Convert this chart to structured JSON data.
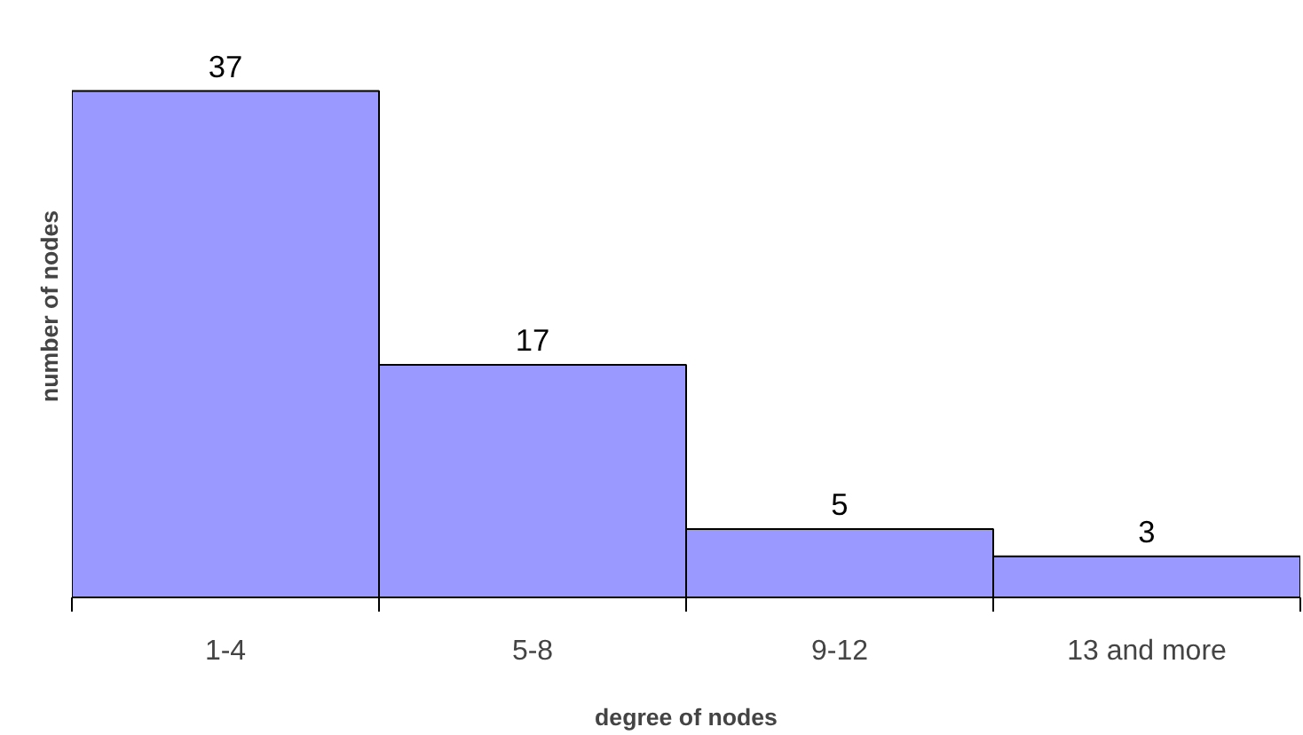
{
  "chart_data": {
    "type": "bar",
    "categories": [
      "1-4",
      "5-8",
      "9-12",
      "13 and more"
    ],
    "values": [
      37,
      17,
      5,
      3
    ],
    "color": "#9999ff",
    "data_labels": true,
    "xlabel": "degree of nodes",
    "ylabel": "number of nodes",
    "grid": false
  }
}
